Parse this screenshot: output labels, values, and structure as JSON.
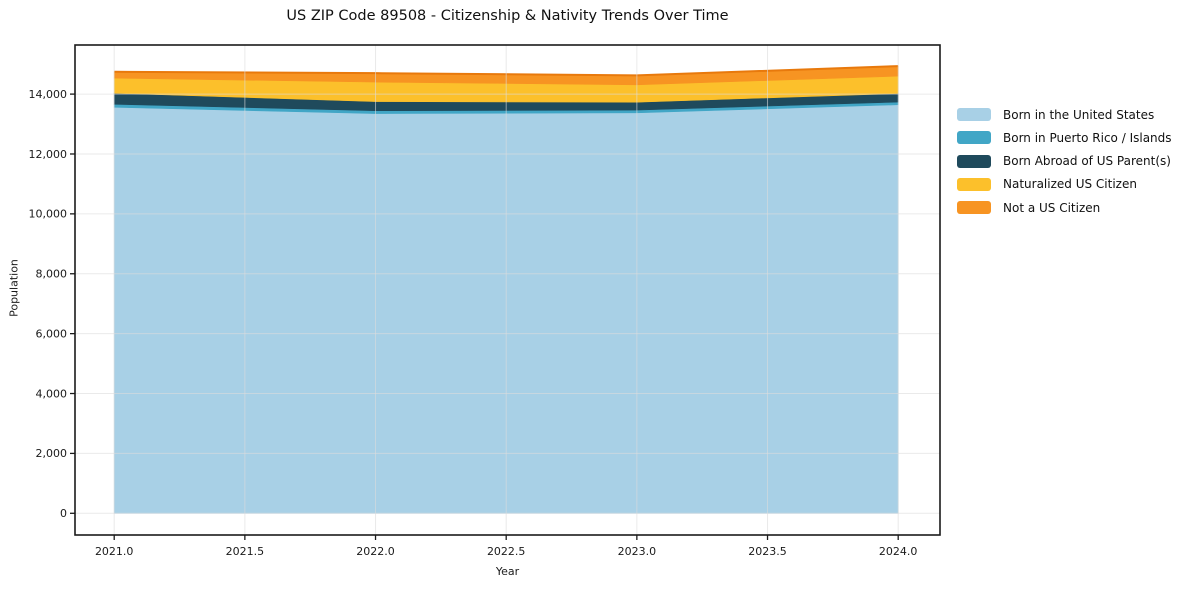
{
  "figure": {
    "title": "US ZIP Code 89508 - Citizenship & Nativity Trends Over Time"
  },
  "chart_data": {
    "type": "area",
    "stacked": true,
    "title": "US ZIP Code 89508 - Citizenship & Nativity Trends Over Time",
    "xlabel": "Year",
    "ylabel": "Population",
    "x": [
      2021,
      2022,
      2023,
      2024
    ],
    "series": [
      {
        "name": "Born in the United States",
        "color": "#a8d0e6",
        "values": [
          13560,
          13350,
          13375,
          13645
        ]
      },
      {
        "name": "Born in Puerto Rico / Islands",
        "color": "#41a6c6",
        "values": [
          100,
          95,
          90,
          90
        ]
      },
      {
        "name": "Born Abroad of US Parent(s)",
        "color": "#1f4a5c",
        "values": [
          370,
          305,
          265,
          285
        ]
      },
      {
        "name": "Naturalized US Citizen",
        "color": "#fcc02b",
        "values": [
          505,
          650,
          580,
          580
        ]
      },
      {
        "name": "Not a US Citizen",
        "color": "#f79422",
        "values": [
          210,
          300,
          315,
          335
        ]
      }
    ],
    "totals": [
      14745,
      14700,
      14625,
      14935
    ],
    "top_edge_color": "#e8790c",
    "xlim": [
      2020.85,
      2024.16
    ],
    "ylim": [
      -725,
      15640
    ],
    "xticks": {
      "values": [
        2021.0,
        2021.5,
        2022.0,
        2022.5,
        2023.0,
        2023.5,
        2024.0
      ],
      "labels": [
        "2021.0",
        "2021.5",
        "2022.0",
        "2022.5",
        "2023.0",
        "2023.5",
        "2024.0"
      ]
    },
    "yticks": {
      "values": [
        0,
        2000,
        4000,
        6000,
        8000,
        10000,
        12000,
        14000
      ],
      "labels": [
        "0",
        "2,000",
        "4,000",
        "6,000",
        "8,000",
        "10,000",
        "12,000",
        "14,000"
      ]
    },
    "grid": true,
    "legend_position": "right-outside"
  }
}
